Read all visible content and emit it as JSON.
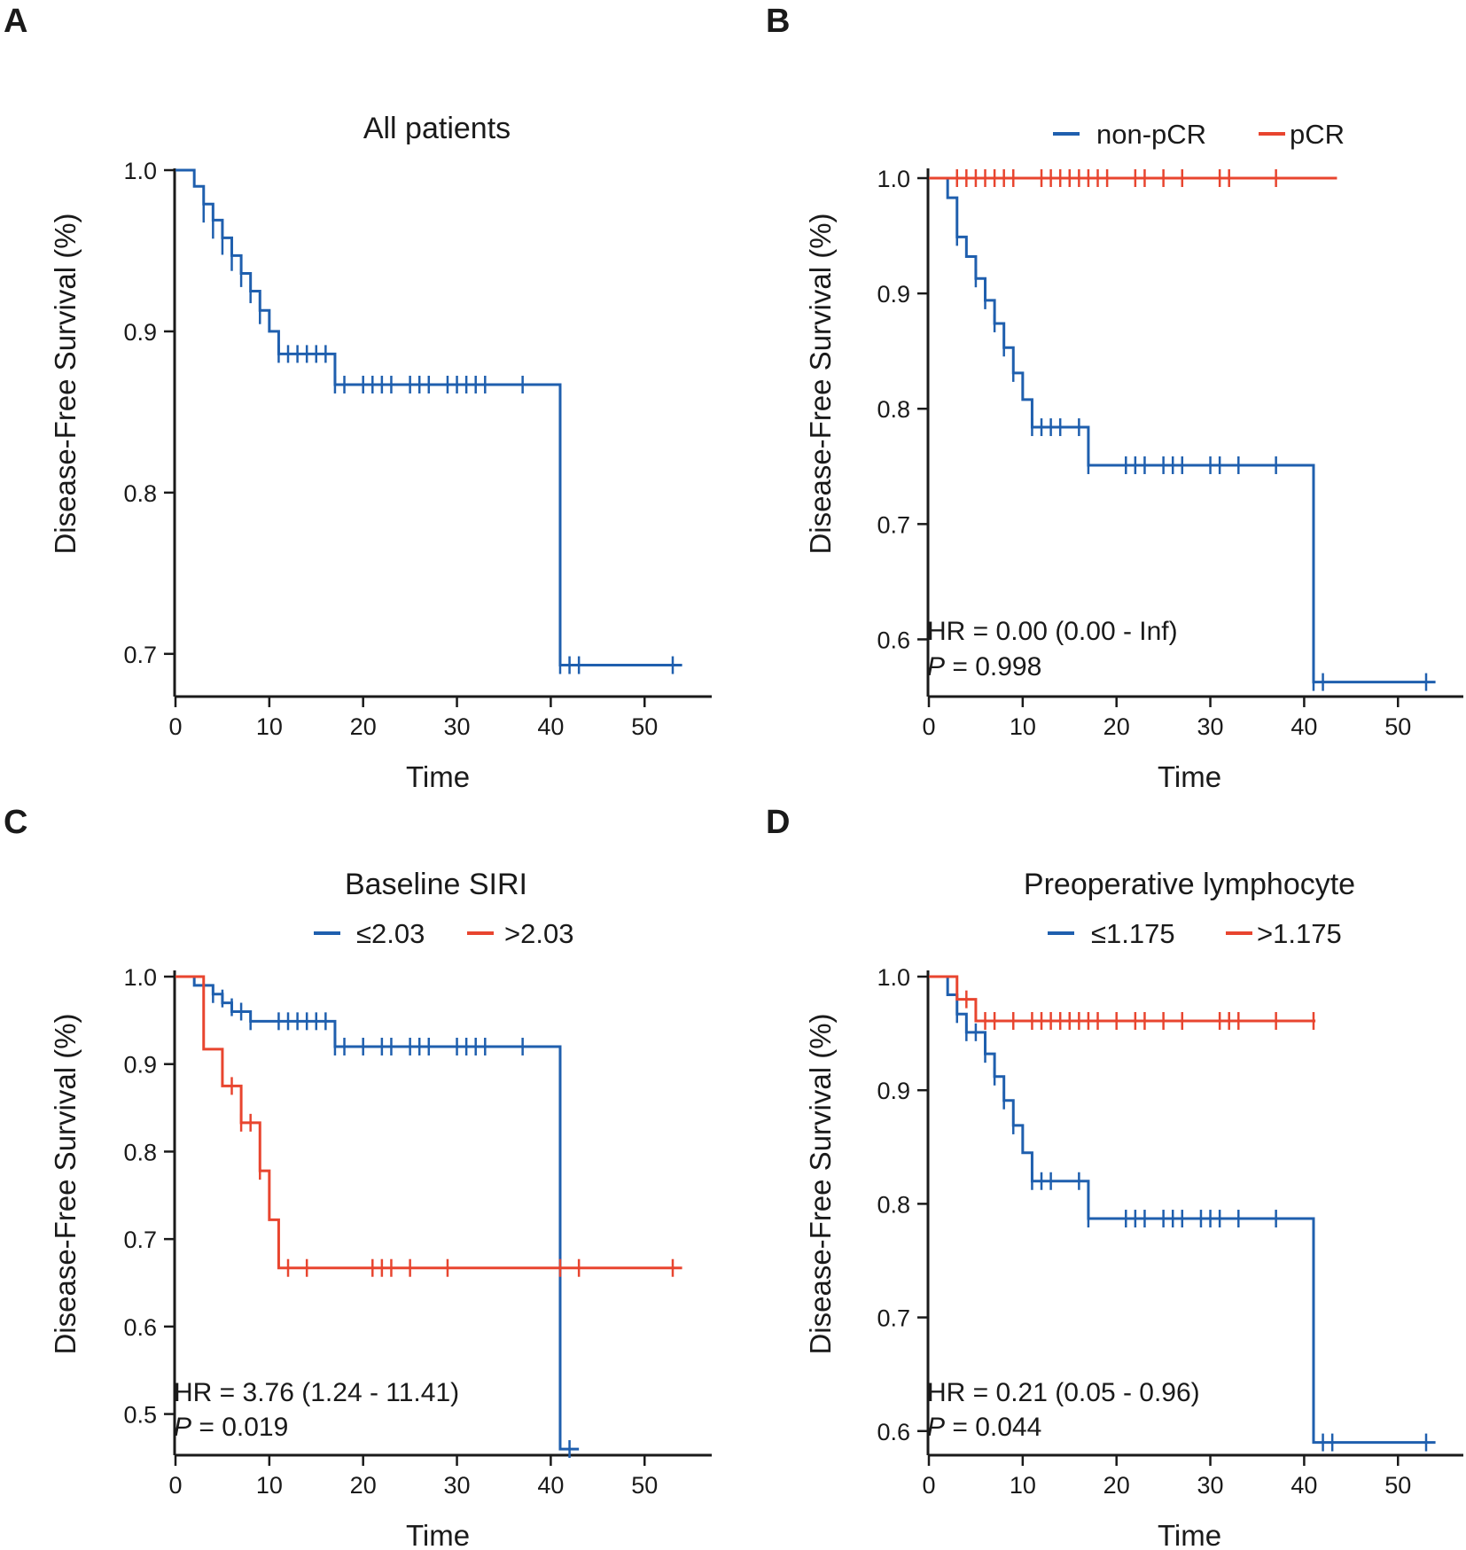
{
  "colors": {
    "blue": "#1f5fae",
    "red": "#e8452f",
    "axis": "#1a1a1a"
  },
  "chart_data": [
    {
      "type": "line",
      "panel": "A",
      "title": "All patients",
      "xlabel": "Time",
      "ylabel": "Disease-Free Survival (%)",
      "xlim": [
        0,
        53
      ],
      "ylim": [
        0.69,
        1.0
      ],
      "xticks": [
        0,
        10,
        20,
        30,
        40,
        50
      ],
      "yticks": [
        0.7,
        0.8,
        0.9,
        1.0
      ],
      "ytick_labels": [
        "0.7",
        "0.8",
        "0.9",
        "1.0"
      ],
      "legend": [],
      "annotation": [],
      "series": [
        {
          "color": "blue",
          "steps": [
            [
              0,
              1.0
            ],
            [
              2,
              0.99
            ],
            [
              3,
              0.979
            ],
            [
              4,
              0.969
            ],
            [
              5,
              0.958
            ],
            [
              6,
              0.947
            ],
            [
              7,
              0.936
            ],
            [
              8,
              0.925
            ],
            [
              9,
              0.913
            ],
            [
              10,
              0.9
            ],
            [
              11,
              0.886
            ],
            [
              17,
              0.867
            ],
            [
              41,
              0.693
            ]
          ],
          "censors": [
            [
              3,
              0.973
            ],
            [
              4,
              0.963
            ],
            [
              5,
              0.953
            ],
            [
              6,
              0.943
            ],
            [
              7,
              0.933
            ],
            [
              8,
              0.923
            ],
            [
              9,
              0.91
            ],
            [
              11,
              0.886
            ],
            [
              12,
              0.886
            ],
            [
              13,
              0.886
            ],
            [
              14,
              0.886
            ],
            [
              15,
              0.886
            ],
            [
              16,
              0.886
            ],
            [
              17,
              0.867
            ],
            [
              18,
              0.867
            ],
            [
              20,
              0.867
            ],
            [
              21,
              0.867
            ],
            [
              22,
              0.867
            ],
            [
              23,
              0.867
            ],
            [
              25,
              0.867
            ],
            [
              26,
              0.867
            ],
            [
              27,
              0.867
            ],
            [
              29,
              0.867
            ],
            [
              30,
              0.867
            ],
            [
              31,
              0.867
            ],
            [
              32,
              0.867
            ],
            [
              33,
              0.867
            ],
            [
              37,
              0.867
            ],
            [
              41,
              0.693
            ],
            [
              42,
              0.693
            ],
            [
              43,
              0.693
            ],
            [
              53,
              0.693
            ]
          ],
          "end": 54
        }
      ]
    },
    {
      "type": "line",
      "panel": "B",
      "title": "",
      "xlabel": "Time",
      "ylabel": "Disease-Free Survival (%)",
      "xlim": [
        0,
        53
      ],
      "ylim": [
        0.555,
        1.0
      ],
      "xticks": [
        0,
        10,
        20,
        30,
        40,
        50
      ],
      "yticks": [
        0.6,
        0.7,
        0.8,
        0.9,
        1.0
      ],
      "ytick_labels": [
        "0.6",
        "0.7",
        "0.8",
        "0.9",
        "1.0"
      ],
      "legend": [
        {
          "label": "non-pCR",
          "color": "blue"
        },
        {
          "label": "pCR",
          "color": "red"
        }
      ],
      "annotation": [
        "HR = 0.00 (0.00 -  Inf)",
        "P = 0.998"
      ],
      "series": [
        {
          "name": "non-pCR",
          "color": "blue",
          "steps": [
            [
              0,
              1.0
            ],
            [
              2,
              0.983
            ],
            [
              3,
              0.949
            ],
            [
              4,
              0.932
            ],
            [
              5,
              0.913
            ],
            [
              6,
              0.894
            ],
            [
              7,
              0.874
            ],
            [
              8,
              0.853
            ],
            [
              9,
              0.831
            ],
            [
              10,
              0.808
            ],
            [
              11,
              0.784
            ],
            [
              17,
              0.751
            ],
            [
              41,
              0.563
            ]
          ],
          "censors": [
            [
              3,
              0.949
            ],
            [
              5,
              0.913
            ],
            [
              6,
              0.894
            ],
            [
              7,
              0.874
            ],
            [
              8,
              0.853
            ],
            [
              9,
              0.831
            ],
            [
              11,
              0.784
            ],
            [
              12,
              0.784
            ],
            [
              13,
              0.784
            ],
            [
              14,
              0.784
            ],
            [
              16,
              0.784
            ],
            [
              17,
              0.751
            ],
            [
              21,
              0.751
            ],
            [
              22,
              0.751
            ],
            [
              23,
              0.751
            ],
            [
              25,
              0.751
            ],
            [
              26,
              0.751
            ],
            [
              27,
              0.751
            ],
            [
              30,
              0.751
            ],
            [
              31,
              0.751
            ],
            [
              33,
              0.751
            ],
            [
              37,
              0.751
            ],
            [
              41,
              0.563
            ],
            [
              42,
              0.563
            ],
            [
              53,
              0.563
            ]
          ],
          "end": 54
        },
        {
          "name": "pCR",
          "color": "red",
          "steps": [
            [
              0,
              1.0
            ]
          ],
          "censors": [
            [
              3,
              1.0
            ],
            [
              4,
              1.0
            ],
            [
              5,
              1.0
            ],
            [
              6,
              1.0
            ],
            [
              7,
              1.0
            ],
            [
              8,
              1.0
            ],
            [
              9,
              1.0
            ],
            [
              12,
              1.0
            ],
            [
              13,
              1.0
            ],
            [
              14,
              1.0
            ],
            [
              15,
              1.0
            ],
            [
              16,
              1.0
            ],
            [
              17,
              1.0
            ],
            [
              18,
              1.0
            ],
            [
              19,
              1.0
            ],
            [
              22,
              1.0
            ],
            [
              23,
              1.0
            ],
            [
              25,
              1.0
            ],
            [
              27,
              1.0
            ],
            [
              31,
              1.0
            ],
            [
              32,
              1.0
            ],
            [
              37,
              1.0
            ]
          ],
          "end": 43.5
        }
      ]
    },
    {
      "type": "line",
      "panel": "C",
      "title": "Baseline SIRI",
      "xlabel": "Time",
      "ylabel": "Disease-Free Survival (%)",
      "xlim": [
        0,
        53
      ],
      "ylim": [
        0.455,
        1.0
      ],
      "xticks": [
        0,
        10,
        20,
        30,
        40,
        50
      ],
      "yticks": [
        0.5,
        0.6,
        0.7,
        0.8,
        0.9,
        1.0
      ],
      "ytick_labels": [
        "0.5",
        "0.6",
        "0.7",
        "0.8",
        "0.9",
        "1.0"
      ],
      "legend": [
        {
          "label": "≤2.03",
          "color": "blue"
        },
        {
          "label": ">2.03",
          "color": "red"
        }
      ],
      "annotation": [
        "HR = 3.76 (1.24 -  11.41)",
        "P = 0.019"
      ],
      "series": [
        {
          "name": "≤2.03",
          "color": "blue",
          "steps": [
            [
              0,
              1.0
            ],
            [
              2,
              0.99
            ],
            [
              4,
              0.98
            ],
            [
              5,
              0.97
            ],
            [
              6,
              0.96
            ],
            [
              8,
              0.949
            ],
            [
              17,
              0.92
            ],
            [
              41,
              0.46
            ]
          ],
          "censors": [
            [
              3,
              0.99
            ],
            [
              4,
              0.98
            ],
            [
              5,
              0.975
            ],
            [
              6,
              0.965
            ],
            [
              7,
              0.96
            ],
            [
              8,
              0.949
            ],
            [
              11,
              0.949
            ],
            [
              12,
              0.949
            ],
            [
              13,
              0.949
            ],
            [
              14,
              0.949
            ],
            [
              15,
              0.949
            ],
            [
              16,
              0.949
            ],
            [
              17,
              0.92
            ],
            [
              18,
              0.92
            ],
            [
              20,
              0.92
            ],
            [
              22,
              0.92
            ],
            [
              23,
              0.92
            ],
            [
              25,
              0.92
            ],
            [
              26,
              0.92
            ],
            [
              27,
              0.92
            ],
            [
              30,
              0.92
            ],
            [
              31,
              0.92
            ],
            [
              32,
              0.92
            ],
            [
              33,
              0.92
            ],
            [
              37,
              0.92
            ],
            [
              42,
              0.46
            ]
          ],
          "end": 43
        },
        {
          "name": ">2.03",
          "color": "red",
          "steps": [
            [
              0,
              1.0
            ],
            [
              3,
              0.917
            ],
            [
              5,
              0.875
            ],
            [
              7,
              0.833
            ],
            [
              9,
              0.778
            ],
            [
              10,
              0.722
            ],
            [
              11,
              0.667
            ]
          ],
          "censors": [
            [
              6,
              0.875
            ],
            [
              7,
              0.833
            ],
            [
              8,
              0.833
            ],
            [
              9,
              0.778
            ],
            [
              12,
              0.667
            ],
            [
              14,
              0.667
            ],
            [
              21,
              0.667
            ],
            [
              22,
              0.667
            ],
            [
              23,
              0.667
            ],
            [
              25,
              0.667
            ],
            [
              29,
              0.667
            ],
            [
              41,
              0.667
            ],
            [
              43,
              0.667
            ],
            [
              53,
              0.667
            ]
          ],
          "end": 54
        }
      ]
    },
    {
      "type": "line",
      "panel": "D",
      "title": "Preoperative lymphocyte",
      "xlabel": "Time",
      "ylabel": "Disease-Free Survival (%)",
      "xlim": [
        0,
        53
      ],
      "ylim": [
        0.585,
        1.0
      ],
      "xticks": [
        0,
        10,
        20,
        30,
        40,
        50
      ],
      "yticks": [
        0.6,
        0.7,
        0.8,
        0.9,
        1.0
      ],
      "ytick_labels": [
        "0.6",
        "0.7",
        "0.8",
        "0.9",
        "1.0"
      ],
      "legend": [
        {
          "label": "≤1.175",
          "color": "blue"
        },
        {
          "label": ">1.175",
          "color": "red"
        }
      ],
      "annotation": [
        "HR = 0.21 (0.05 -  0.96)",
        "P = 0.044"
      ],
      "series": [
        {
          "name": "≤1.175",
          "color": "blue",
          "steps": [
            [
              0,
              1.0
            ],
            [
              2,
              0.984
            ],
            [
              3,
              0.967
            ],
            [
              4,
              0.951
            ],
            [
              6,
              0.932
            ],
            [
              7,
              0.912
            ],
            [
              8,
              0.891
            ],
            [
              9,
              0.869
            ],
            [
              10,
              0.845
            ],
            [
              11,
              0.82
            ],
            [
              17,
              0.787
            ],
            [
              41,
              0.59
            ]
          ],
          "censors": [
            [
              3,
              0.967
            ],
            [
              4,
              0.951
            ],
            [
              5,
              0.951
            ],
            [
              6,
              0.932
            ],
            [
              7,
              0.912
            ],
            [
              8,
              0.891
            ],
            [
              9,
              0.869
            ],
            [
              11,
              0.82
            ],
            [
              12,
              0.82
            ],
            [
              13,
              0.82
            ],
            [
              16,
              0.82
            ],
            [
              17,
              0.787
            ],
            [
              21,
              0.787
            ],
            [
              22,
              0.787
            ],
            [
              23,
              0.787
            ],
            [
              25,
              0.787
            ],
            [
              26,
              0.787
            ],
            [
              27,
              0.787
            ],
            [
              29,
              0.787
            ],
            [
              30,
              0.787
            ],
            [
              31,
              0.787
            ],
            [
              33,
              0.787
            ],
            [
              37,
              0.787
            ],
            [
              42,
              0.59
            ],
            [
              43,
              0.59
            ],
            [
              53,
              0.59
            ]
          ],
          "end": 54
        },
        {
          "name": ">1.175",
          "color": "red",
          "steps": [
            [
              0,
              1.0
            ],
            [
              3,
              0.98
            ],
            [
              5,
              0.961
            ]
          ],
          "censors": [
            [
              4,
              0.98
            ],
            [
              6,
              0.961
            ],
            [
              7,
              0.961
            ],
            [
              9,
              0.961
            ],
            [
              11,
              0.961
            ],
            [
              12,
              0.961
            ],
            [
              13,
              0.961
            ],
            [
              14,
              0.961
            ],
            [
              15,
              0.961
            ],
            [
              16,
              0.961
            ],
            [
              17,
              0.961
            ],
            [
              18,
              0.961
            ],
            [
              20,
              0.961
            ],
            [
              22,
              0.961
            ],
            [
              23,
              0.961
            ],
            [
              25,
              0.961
            ],
            [
              27,
              0.961
            ],
            [
              31,
              0.961
            ],
            [
              32,
              0.961
            ],
            [
              33,
              0.961
            ],
            [
              37,
              0.961
            ],
            [
              41,
              0.961
            ]
          ],
          "end": 41.2
        }
      ]
    }
  ]
}
